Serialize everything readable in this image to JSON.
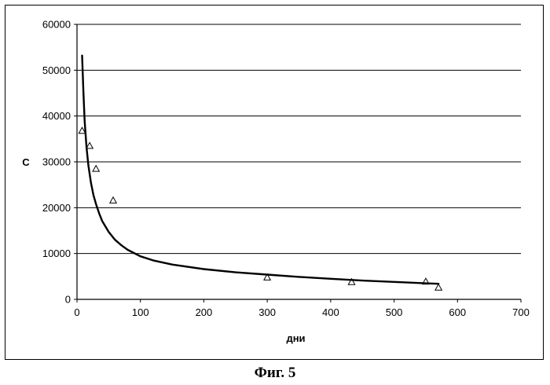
{
  "figure_caption": "Фиг. 5",
  "chart_data": {
    "type": "scatter",
    "xlabel": "дни",
    "ylabel": "C",
    "xlim": [
      0,
      700
    ],
    "ylim": [
      0,
      60000
    ],
    "x_ticks": [
      "0",
      "100",
      "200",
      "300",
      "400",
      "500",
      "600",
      "700"
    ],
    "y_ticks": [
      "0",
      "10000",
      "20000",
      "30000",
      "40000",
      "50000",
      "60000"
    ],
    "grid": "horizontal",
    "legend": "none",
    "series": [
      {
        "kind": "points",
        "marker": "triangle",
        "x": [
          8,
          20,
          30,
          57,
          300,
          433,
          550,
          570
        ],
        "y": [
          36800,
          33500,
          28500,
          21600,
          4800,
          3800,
          3900,
          2600
        ]
      },
      {
        "kind": "line",
        "x": [
          8,
          10,
          12,
          15,
          18,
          22,
          26,
          30,
          35,
          40,
          50,
          60,
          70,
          80,
          100,
          120,
          150,
          200,
          250,
          300,
          350,
          400,
          450,
          500,
          550,
          570
        ],
        "y": [
          53200,
          45500,
          39000,
          33200,
          29200,
          25400,
          22700,
          20800,
          18700,
          17000,
          14700,
          13000,
          11800,
          10800,
          9400,
          8500,
          7600,
          6600,
          5900,
          5400,
          4900,
          4500,
          4100,
          3800,
          3500,
          3400
        ]
      }
    ]
  }
}
